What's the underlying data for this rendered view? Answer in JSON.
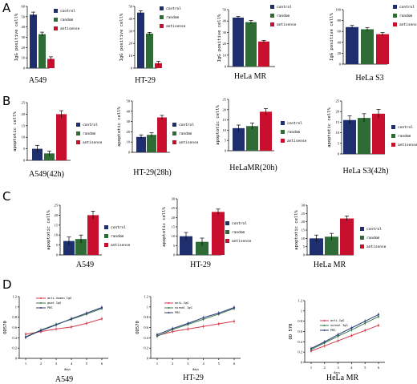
{
  "panel_labels": [
    "A",
    "B",
    "C",
    "D"
  ],
  "colors": {
    "control": "#1f2f6e",
    "random": "#2e6b35",
    "antisense": "#c8102e",
    "line_anti": "#d73a4e",
    "line_normal": "#3c7b4d",
    "line_pbs": "#2b3a7a"
  },
  "chart_data": [
    {
      "panel": "A",
      "type": "bar",
      "title": "A549",
      "ylabel": "IgG positive cell%",
      "ylim": [
        0,
        60
      ],
      "yticks": [
        "0",
        "10",
        "20",
        "30",
        "40",
        "50",
        "60"
      ],
      "legend": [
        "control",
        "random",
        "antisense"
      ],
      "values": [
        52,
        33,
        9
      ],
      "errors": [
        2.5,
        2,
        2
      ]
    },
    {
      "panel": "A",
      "type": "bar",
      "title": "HT-29",
      "ylabel": "IgG positive cell%",
      "ylim": [
        0,
        50
      ],
      "yticks": [
        "0",
        "10",
        "20",
        "30",
        "40",
        "50"
      ],
      "legend": [
        "control",
        "random",
        "antisense"
      ],
      "values": [
        45,
        28,
        4
      ],
      "errors": [
        1.5,
        1,
        1.5
      ]
    },
    {
      "panel": "A",
      "type": "bar",
      "title": "HeLa MR",
      "ylabel": "IgG positive cell%",
      "ylim": [
        0,
        50
      ],
      "yticks": [
        "0",
        "10",
        "20",
        "30",
        "40",
        "50"
      ],
      "legend": [
        "control",
        "random",
        "antisense"
      ],
      "values": [
        43,
        39,
        22
      ],
      "errors": [
        1,
        1.5,
        1
      ]
    },
    {
      "panel": "A",
      "type": "bar",
      "title": "HeLa S3",
      "ylabel": "IgG positive cell%",
      "ylim": [
        0,
        100
      ],
      "yticks": [
        "0",
        "20",
        "40",
        "60",
        "80",
        "100"
      ],
      "legend": [
        "control",
        "random",
        "antisense"
      ],
      "values": [
        68,
        64,
        55
      ],
      "errors": [
        3,
        3,
        3
      ]
    },
    {
      "panel": "B",
      "type": "bar",
      "title": "A549(42h)",
      "ylabel": "apoptotic cell%",
      "ylim": [
        0,
        25
      ],
      "yticks": [
        "0",
        "5",
        "10",
        "15",
        "20",
        "25"
      ],
      "legend": [
        "control",
        "random",
        "antisense"
      ],
      "values": [
        5,
        3,
        20
      ],
      "errors": [
        1.5,
        1,
        1.5
      ]
    },
    {
      "panel": "B",
      "type": "bar",
      "title": "HT-29(28h)",
      "ylabel": "apoptotic cell%",
      "ylim": [
        0,
        50
      ],
      "yticks": [
        "0",
        "10",
        "20",
        "30",
        "40",
        "50"
      ],
      "legend": [
        "control",
        "random",
        "antisense"
      ],
      "values": [
        15,
        17,
        34
      ],
      "errors": [
        2,
        2,
        2
      ]
    },
    {
      "panel": "B",
      "type": "bar",
      "title": "HeLaMR(20h)",
      "ylabel": "apoptotic cell%",
      "ylim": [
        0,
        25
      ],
      "yticks": [
        "0",
        "5",
        "10",
        "15",
        "20",
        "25"
      ],
      "legend": [
        "control",
        "random",
        "antisense"
      ],
      "values": [
        11,
        12,
        19
      ],
      "errors": [
        1.5,
        1.5,
        1.5
      ]
    },
    {
      "panel": "B",
      "type": "bar",
      "title": "HeLa S3(42h)",
      "ylabel": "apoptotic cell%",
      "ylim": [
        0,
        25
      ],
      "yticks": [
        "0",
        "5",
        "10",
        "15",
        "20",
        "25"
      ],
      "legend": [
        "control",
        "random",
        "antisense"
      ],
      "values": [
        16,
        17,
        19
      ],
      "errors": [
        2,
        2,
        2
      ]
    },
    {
      "panel": "C",
      "type": "bar",
      "title": "A549",
      "ylabel": "apoptotic cell%",
      "ylim": [
        0,
        25
      ],
      "yticks": [
        "0",
        "5",
        "10",
        "15",
        "20",
        "25"
      ],
      "legend": [
        "control",
        "random",
        "antisense"
      ],
      "values": [
        7,
        8,
        20
      ],
      "errors": [
        2,
        2,
        2
      ]
    },
    {
      "panel": "C",
      "type": "bar",
      "title": "HT-29",
      "ylabel": "apoptotic cell%",
      "ylim": [
        0,
        30
      ],
      "yticks": [
        "0",
        "5",
        "10",
        "15",
        "20",
        "25",
        "30"
      ],
      "legend": [
        "control",
        "random",
        "antisense"
      ],
      "values": [
        10,
        7,
        23
      ],
      "errors": [
        2,
        2,
        1.5
      ]
    },
    {
      "panel": "C",
      "type": "bar",
      "title": "HeLa MR",
      "ylabel": "apoptotic cell%",
      "ylim": [
        0,
        30
      ],
      "yticks": [
        "0",
        "5",
        "10",
        "15",
        "20",
        "25",
        "30"
      ],
      "legend": [
        "control",
        "random",
        "antisense"
      ],
      "values": [
        10,
        11,
        22
      ],
      "errors": [
        2,
        2,
        1.5
      ]
    },
    {
      "panel": "D",
      "type": "line",
      "title": "A549",
      "ylabel": "OD570",
      "xlabel": "days",
      "x": [
        1,
        2,
        3,
        4,
        5,
        6
      ],
      "ylim": [
        0,
        1.2
      ],
      "yticks": [
        "0",
        "0.2",
        "0.4",
        "0.6",
        "0.8",
        "1",
        "1.2"
      ],
      "series": [
        {
          "name": "anti-human IgG",
          "values": [
            0.47,
            0.52,
            0.57,
            0.61,
            0.68,
            0.77
          ]
        },
        {
          "name": "goat IgG",
          "values": [
            0.42,
            0.55,
            0.66,
            0.76,
            0.86,
            0.97
          ]
        },
        {
          "name": "PBS",
          "values": [
            0.41,
            0.54,
            0.65,
            0.77,
            0.88,
            0.99
          ]
        }
      ]
    },
    {
      "panel": "D",
      "type": "line",
      "title": "HT-29",
      "ylabel": "OD570",
      "xlabel": "days",
      "x": [
        1,
        2,
        3,
        4,
        5,
        6
      ],
      "ylim": [
        0,
        1.2
      ],
      "yticks": [
        "0",
        "0.2",
        "0.4",
        "0.6",
        "0.8",
        "1",
        "1.2"
      ],
      "series": [
        {
          "name": "anti-IgG",
          "values": [
            0.44,
            0.52,
            0.57,
            0.62,
            0.67,
            0.72
          ]
        },
        {
          "name": "normal IgG",
          "values": [
            0.43,
            0.56,
            0.66,
            0.76,
            0.86,
            0.97
          ]
        },
        {
          "name": "PBS",
          "values": [
            0.46,
            0.58,
            0.68,
            0.79,
            0.88,
            0.99
          ]
        }
      ]
    },
    {
      "panel": "D",
      "type": "line",
      "title": "HeLa MR",
      "ylabel": "OD 570",
      "xlabel": "days",
      "x": [
        1,
        2,
        3,
        4,
        5,
        6
      ],
      "ylim": [
        0,
        1.2
      ],
      "yticks": [
        "0",
        "0.2",
        "0.4",
        "0.6",
        "0.8",
        "1",
        "1.2"
      ],
      "series": [
        {
          "name": "anti-IgG",
          "values": [
            0.22,
            0.32,
            0.42,
            0.52,
            0.62,
            0.72
          ]
        },
        {
          "name": "normal IgG",
          "values": [
            0.25,
            0.38,
            0.51,
            0.63,
            0.76,
            0.89
          ]
        },
        {
          "name": "PBS",
          "values": [
            0.27,
            0.4,
            0.54,
            0.67,
            0.8,
            0.93
          ]
        }
      ]
    }
  ]
}
